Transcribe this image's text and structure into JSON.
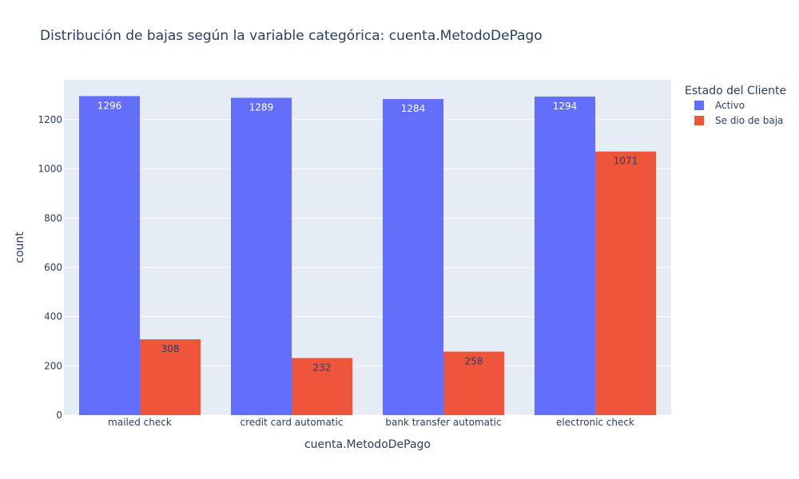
{
  "chart_data": {
    "type": "bar",
    "title": "Distribución de bajas según la variable categórica: cuenta.MetodoDePago",
    "xlabel": "cuenta.MetodoDePago",
    "ylabel": "count",
    "categories": [
      "mailed check",
      "credit card  automatic",
      "bank transfer  automatic",
      "electronic check"
    ],
    "series": [
      {
        "name": "Activo",
        "color": "#636efa",
        "label_color": "#ffffff",
        "values": [
          1296,
          1289,
          1284,
          1294
        ]
      },
      {
        "name": "Se dio de baja",
        "color": "#ef553b",
        "label_color": "#2a3f5f",
        "values": [
          308,
          232,
          258,
          1071
        ]
      }
    ],
    "ylim": [
      0,
      1362
    ],
    "yticks": [
      0,
      200,
      400,
      600,
      800,
      1000,
      1200
    ],
    "grid": true,
    "legend": {
      "title": "Estado del Cliente",
      "placement": "top-right"
    },
    "plot_background": "#e5ecf6"
  }
}
